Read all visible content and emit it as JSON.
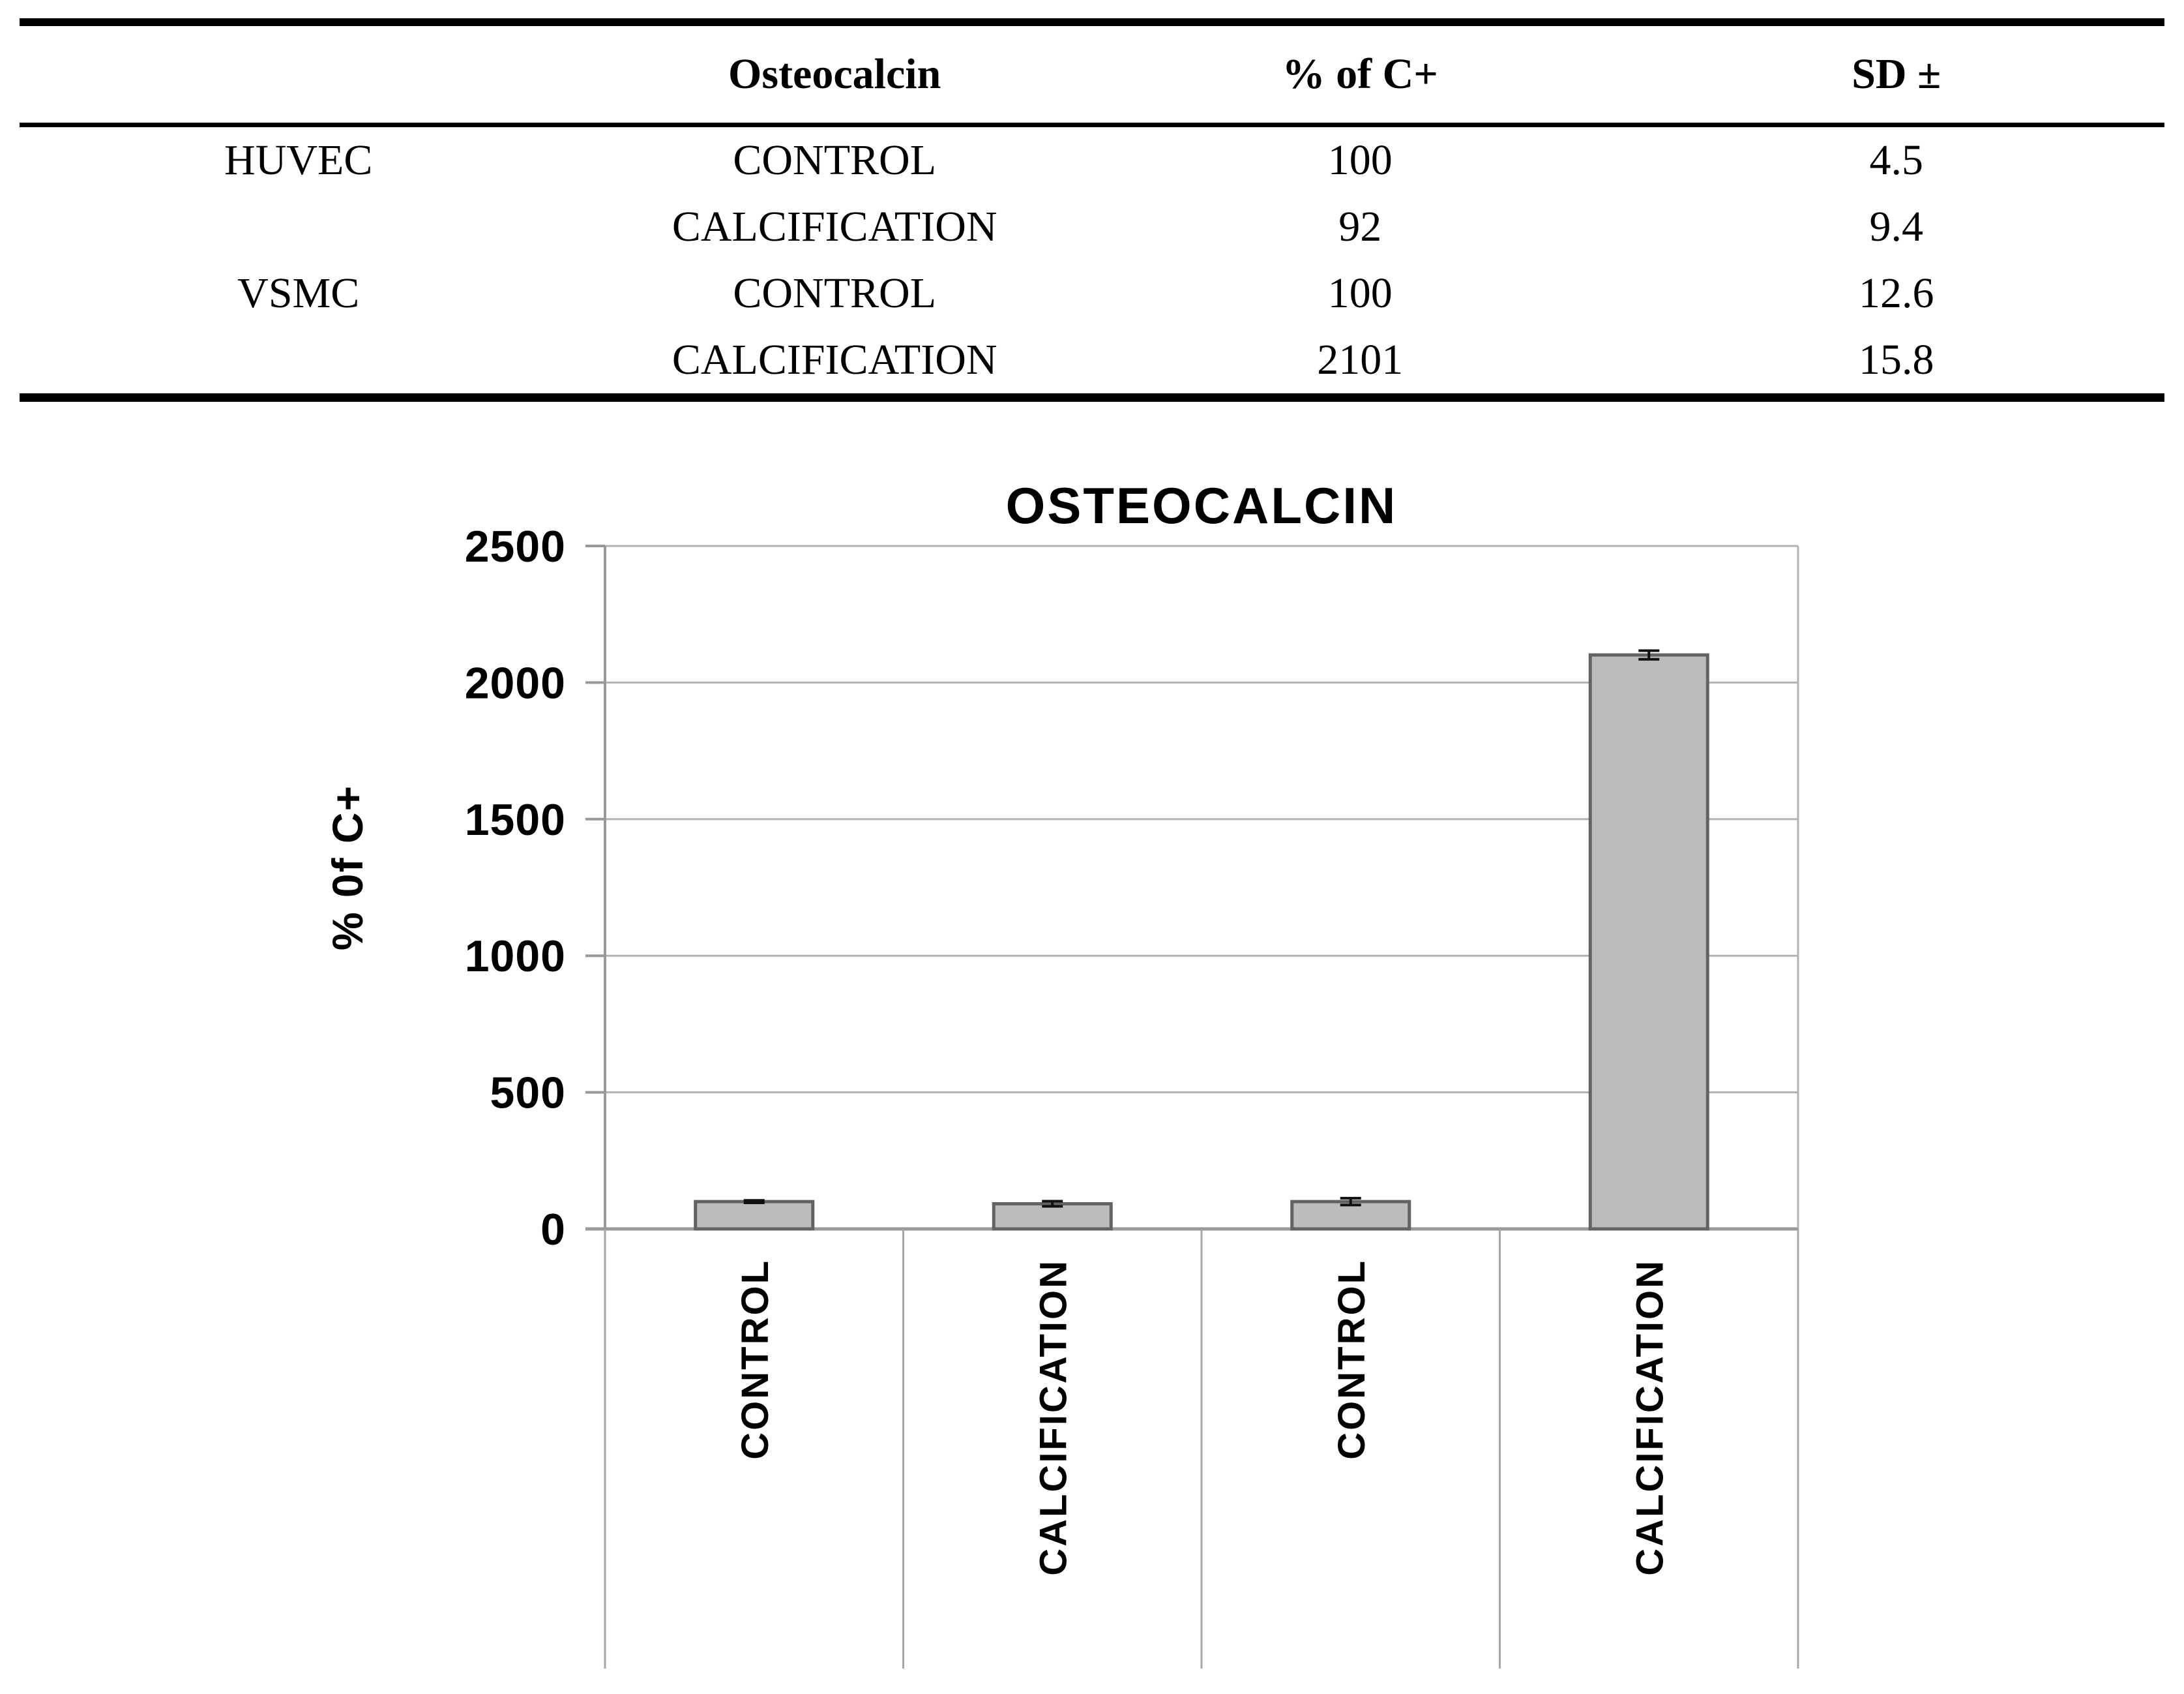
{
  "table": {
    "headers": [
      "",
      "Osteocalcin",
      "% of C+",
      "SD ±"
    ],
    "rows": [
      {
        "group": "HUVEC",
        "condition": "CONTROL",
        "pct": "100",
        "sd": "4.5"
      },
      {
        "group": "",
        "condition": "CALCIFICATION",
        "pct": "92",
        "sd": "9.4"
      },
      {
        "group": "VSMC",
        "condition": "CONTROL",
        "pct": "100",
        "sd": "12.6"
      },
      {
        "group": "",
        "condition": "CALCIFICATION",
        "pct": "2101",
        "sd": "15.8"
      }
    ]
  },
  "chart_data": {
    "type": "bar",
    "title": "OSTEOCALCIN",
    "ylabel": "% 0f C+",
    "xlabel": "",
    "categories": [
      "CONTROL",
      "CALCIFICATION",
      "CONTROL",
      "CALCIFICATION"
    ],
    "values": [
      100,
      92,
      100,
      2101
    ],
    "errors": [
      4.5,
      9.4,
      12.6,
      15.8
    ],
    "ylim": [
      0,
      2500
    ],
    "yticks": [
      0,
      500,
      1000,
      1500,
      2000,
      2500
    ],
    "grid": true,
    "legend": "none",
    "bar_fill": "#bcbcbc",
    "bar_stroke": "#636363",
    "error_color": "#111111",
    "grid_color": "#b3b3b3",
    "axis_color": "#999999",
    "separator_color": "#a8a8a8"
  }
}
